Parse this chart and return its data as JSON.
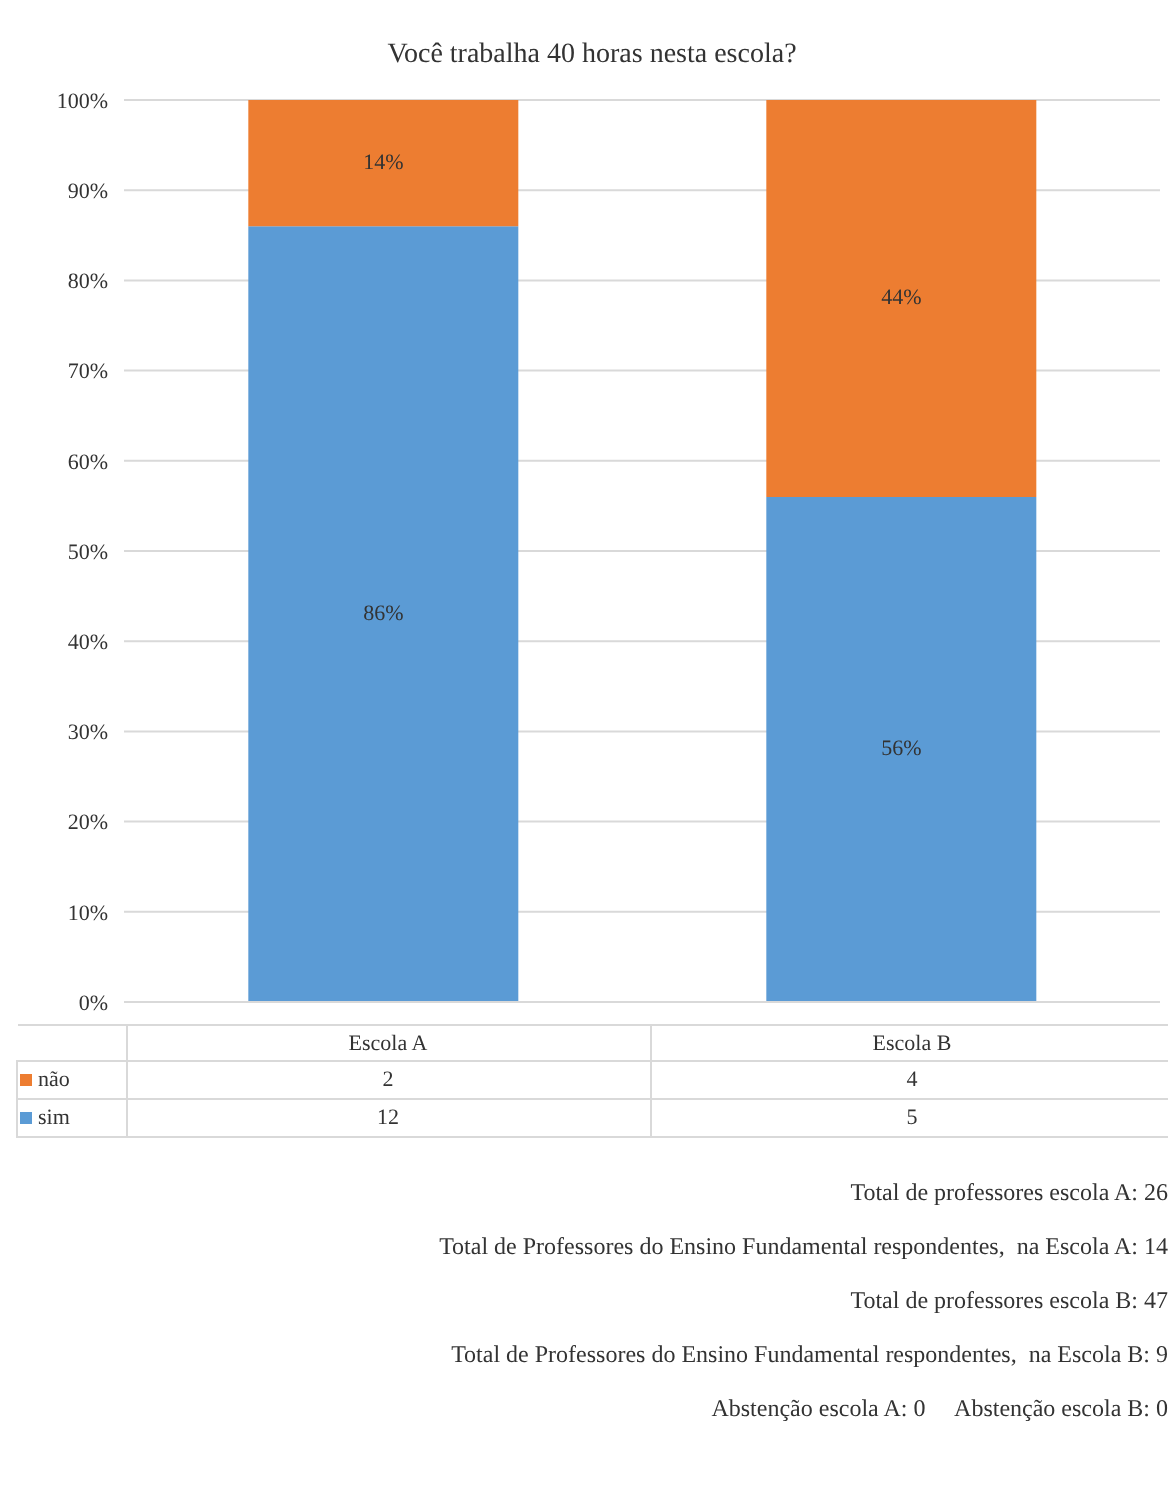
{
  "chart_data": {
    "type": "bar",
    "title": "Você trabalha 40 horas nesta escola?",
    "categories": [
      "Escola A",
      "Escola B"
    ],
    "stacked": true,
    "series": [
      {
        "name": "sim",
        "color": "#5b9bd5",
        "values": [
          86,
          56
        ],
        "value_labels": [
          "86%",
          "56%"
        ]
      },
      {
        "name": "não",
        "color": "#ed7d31",
        "values": [
          14,
          44
        ],
        "value_labels": [
          "14%",
          "44%"
        ]
      }
    ],
    "ylim": [
      0,
      100
    ],
    "yticks": [
      {
        "value": 0,
        "label": "0%"
      },
      {
        "value": 10,
        "label": "10%"
      },
      {
        "value": 20,
        "label": "20%"
      },
      {
        "value": 30,
        "label": "30%"
      },
      {
        "value": 40,
        "label": "40%"
      },
      {
        "value": 50,
        "label": "50%"
      },
      {
        "value": 60,
        "label": "60%"
      },
      {
        "value": 70,
        "label": "70%"
      },
      {
        "value": 80,
        "label": "80%"
      },
      {
        "value": 90,
        "label": "90%"
      },
      {
        "value": 100,
        "label": "100%"
      }
    ],
    "grid": "y",
    "legend": "bottom",
    "annotations": [
      "2",
      "4",
      "12",
      "5",
      "Total de professores escola A: 26",
      "Total de Professores do Ensino Fundamental respondentes,  na Escola A: 14",
      "Total de professores escola B: 47",
      "Total de Professores do Ensino Fundamental respondentes,  na Escola B: 9",
      "Abstenção escola A: 0     Abstenção escola B: 0"
    ]
  }
}
